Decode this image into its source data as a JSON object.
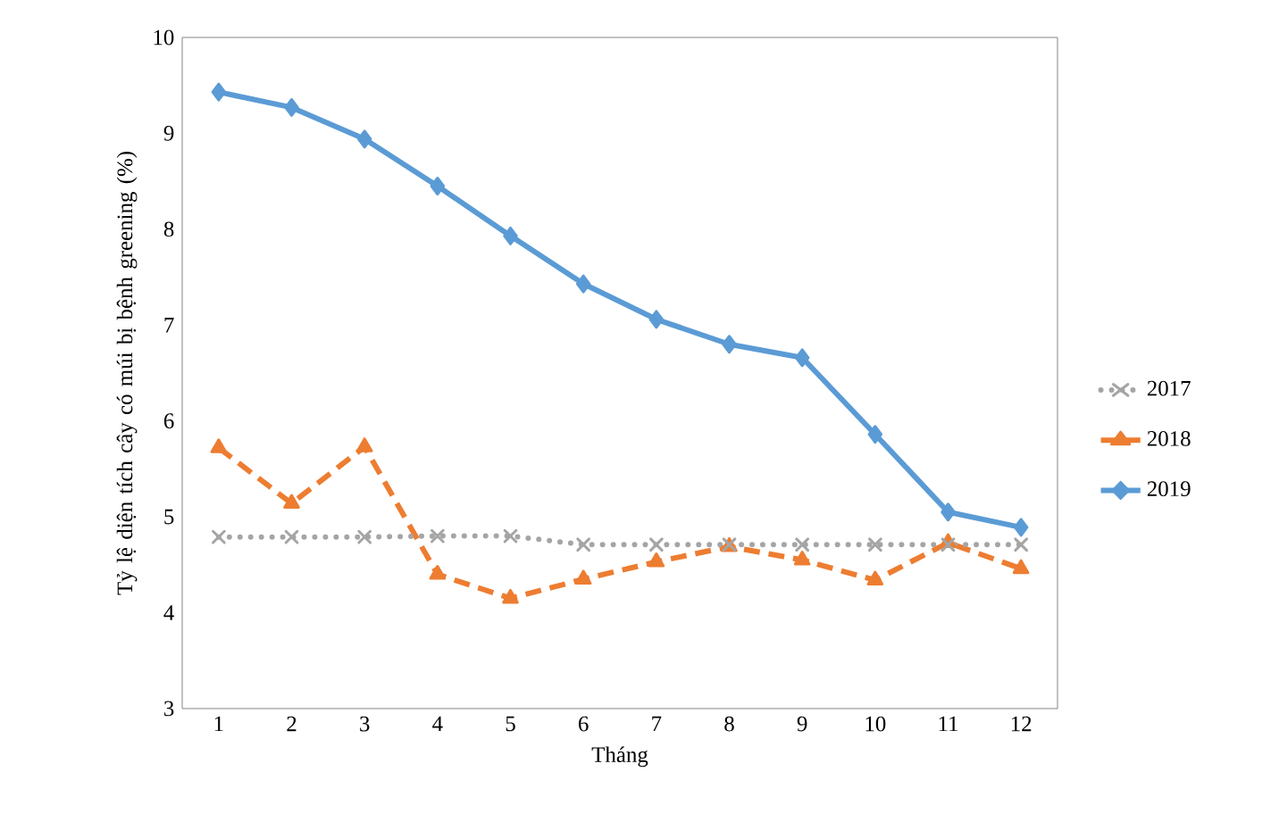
{
  "chart_data": {
    "type": "line",
    "xlabel": "Tháng",
    "ylabel": "Tỷ lệ diện tích cây có múi bị bệnh greening (%)",
    "categories": [
      "1",
      "2",
      "3",
      "4",
      "5",
      "6",
      "7",
      "8",
      "9",
      "10",
      "11",
      "12"
    ],
    "ylim": [
      3,
      10
    ],
    "yticks": [
      3,
      4,
      5,
      6,
      7,
      8,
      9,
      10
    ],
    "grid": false,
    "legend": "right",
    "series": [
      {
        "name": "2017",
        "color": "#a5a5a5",
        "marker": "cross",
        "line_style": "dotted",
        "values": [
          4.79,
          4.79,
          4.79,
          4.8,
          4.8,
          4.71,
          4.71,
          4.71,
          4.71,
          4.71,
          4.71,
          4.71
        ]
      },
      {
        "name": "2018",
        "color": "#ed7d31",
        "marker": "triangle",
        "line_style": "dashed",
        "values": [
          5.72,
          5.14,
          5.73,
          4.4,
          4.15,
          4.35,
          4.53,
          4.69,
          4.55,
          4.34,
          4.73,
          4.46
        ]
      },
      {
        "name": "2019",
        "color": "#5b9bd5",
        "marker": "diamond",
        "line_style": "solid",
        "values": [
          9.43,
          9.27,
          8.94,
          8.45,
          7.93,
          7.43,
          7.06,
          6.8,
          6.66,
          5.86,
          5.05,
          4.89
        ]
      }
    ]
  }
}
